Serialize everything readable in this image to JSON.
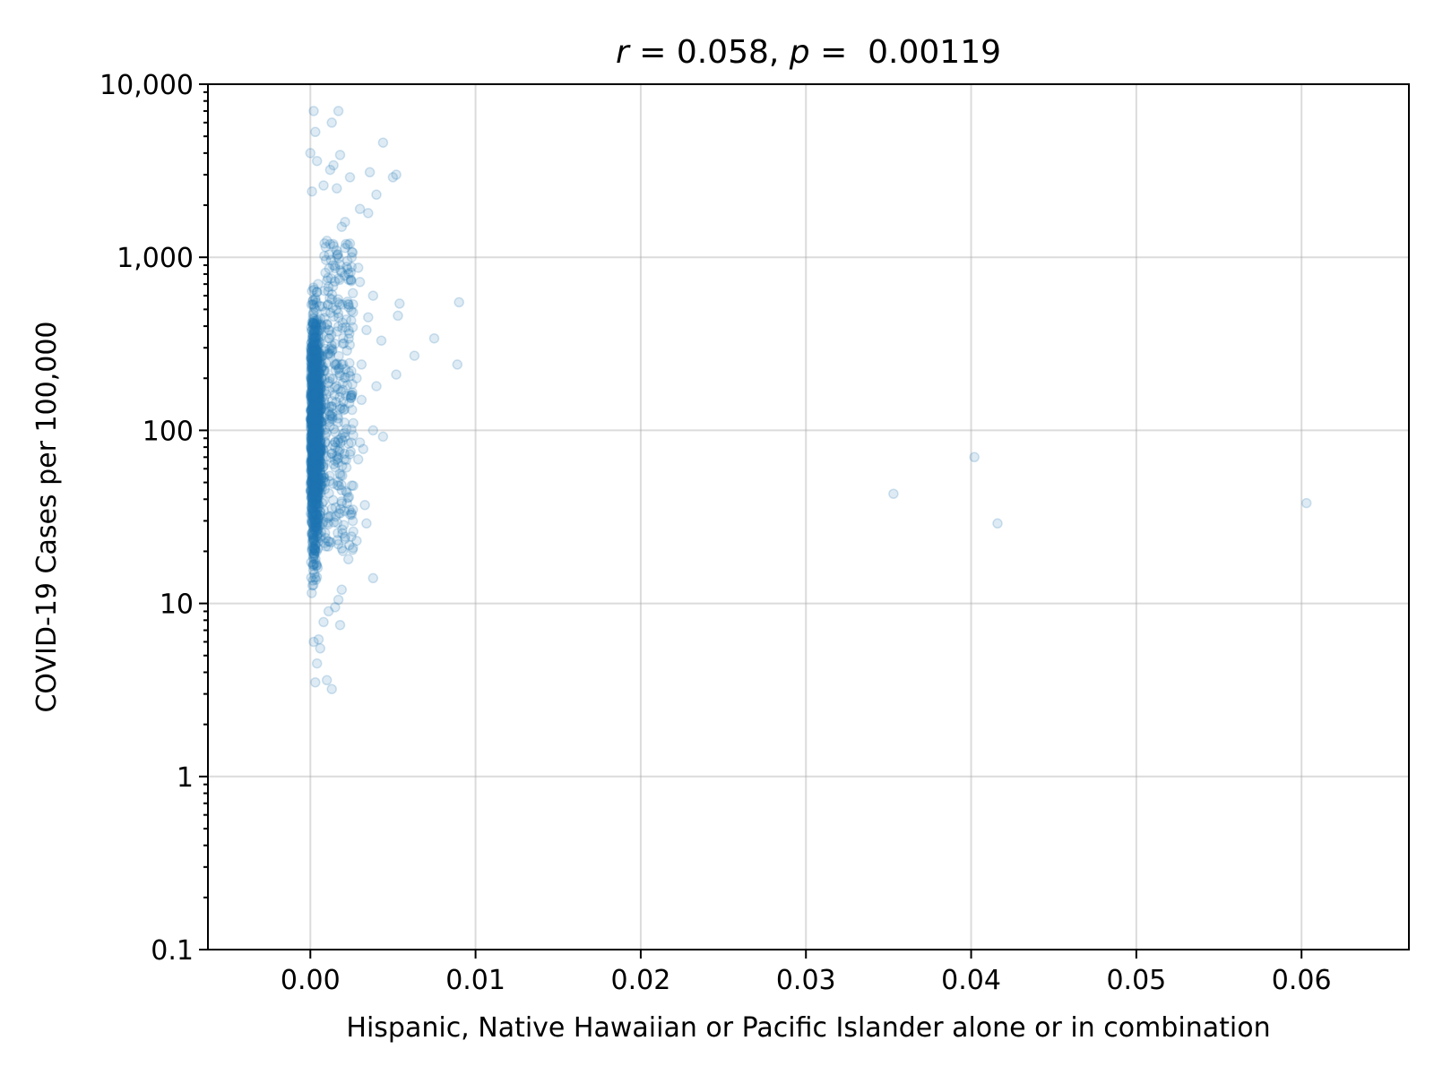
{
  "chart_data": {
    "type": "scatter",
    "title": "r = 0.058, p =  0.00119",
    "title_parts": [
      {
        "text": "r",
        "italic": true
      },
      {
        "text": " = 0.058, ",
        "italic": false
      },
      {
        "text": "p",
        "italic": true
      },
      {
        "text": " =  0.00119",
        "italic": false
      }
    ],
    "xlabel": "Hispanic, Native Hawaiian or Pacific Islander alone or in combination",
    "ylabel": "COVID-19 Cases per 100,000",
    "xlim": [
      -0.0062,
      0.0665
    ],
    "ylim": [
      0.1,
      10000
    ],
    "yscale": "log",
    "grid": true,
    "marker_color": "#1f77b4",
    "marker_opacity": 0.15,
    "x_ticks": [
      {
        "value": 0.0,
        "label": "0.00"
      },
      {
        "value": 0.01,
        "label": "0.01"
      },
      {
        "value": 0.02,
        "label": "0.02"
      },
      {
        "value": 0.03,
        "label": "0.03"
      },
      {
        "value": 0.04,
        "label": "0.04"
      },
      {
        "value": 0.05,
        "label": "0.05"
      },
      {
        "value": 0.06,
        "label": "0.06"
      }
    ],
    "y_ticks": [
      {
        "value": 0.1,
        "label": "0.1"
      },
      {
        "value": 1,
        "label": "1"
      },
      {
        "value": 10,
        "label": "10"
      },
      {
        "value": 100,
        "label": "100"
      },
      {
        "value": 1000,
        "label": "1,000"
      },
      {
        "value": 10000,
        "label": "10,000"
      }
    ],
    "points": [
      [
        0.0002,
        7000
      ],
      [
        0.0017,
        7000
      ],
      [
        0.0003,
        5300
      ],
      [
        0.0013,
        6000
      ],
      [
        0.0044,
        4600
      ],
      [
        0.0,
        4000
      ],
      [
        0.0018,
        3900
      ],
      [
        0.0004,
        3600
      ],
      [
        0.0014,
        3400
      ],
      [
        0.0012,
        3200
      ],
      [
        0.0036,
        3100
      ],
      [
        0.0052,
        3000
      ],
      [
        0.005,
        2900
      ],
      [
        0.0024,
        2900
      ],
      [
        0.0001,
        2400
      ],
      [
        0.0008,
        2600
      ],
      [
        0.0016,
        2500
      ],
      [
        0.004,
        2300
      ],
      [
        0.003,
        1900
      ],
      [
        0.0035,
        1800
      ],
      [
        0.0019,
        1500
      ],
      [
        0.0021,
        1600
      ],
      [
        0.0024,
        1200
      ],
      [
        0.0025,
        1000
      ],
      [
        0.0029,
        870
      ],
      [
        0.0022,
        880
      ],
      [
        0.003,
        720
      ],
      [
        0.0038,
        600
      ],
      [
        0.0054,
        540
      ],
      [
        0.0053,
        460
      ],
      [
        0.009,
        550
      ],
      [
        0.0035,
        450
      ],
      [
        0.0034,
        380
      ],
      [
        0.0075,
        340
      ],
      [
        0.0043,
        330
      ],
      [
        0.0063,
        270
      ],
      [
        0.0089,
        240
      ],
      [
        0.0052,
        210
      ],
      [
        0.004,
        180
      ],
      [
        0.0031,
        240
      ],
      [
        0.0028,
        200
      ],
      [
        0.0031,
        150
      ],
      [
        0.0026,
        110
      ],
      [
        0.0038,
        100
      ],
      [
        0.0044,
        92
      ],
      [
        0.003,
        85
      ],
      [
        0.0032,
        78
      ],
      [
        0.0029,
        68
      ],
      [
        0.0025,
        48
      ],
      [
        0.0033,
        37
      ],
      [
        0.0026,
        26
      ],
      [
        0.0034,
        29
      ],
      [
        0.0028,
        23
      ],
      [
        0.0023,
        18
      ],
      [
        0.0038,
        14
      ],
      [
        0.0019,
        12
      ],
      [
        0.0017,
        10.5
      ],
      [
        0.0015,
        9.5
      ],
      [
        0.0018,
        7.5
      ],
      [
        0.001,
        3.6
      ],
      [
        0.0013,
        3.2
      ],
      [
        0.0003,
        3.5
      ],
      [
        0.0004,
        4.5
      ],
      [
        0.0006,
        5.5
      ],
      [
        0.0002,
        6.0
      ],
      [
        0.0005,
        6.2
      ],
      [
        0.0008,
        7.8
      ],
      [
        0.0011,
        9.0
      ],
      [
        0.0353,
        43
      ],
      [
        0.0402,
        70
      ],
      [
        0.0416,
        29
      ],
      [
        0.0603,
        38
      ]
    ]
  }
}
